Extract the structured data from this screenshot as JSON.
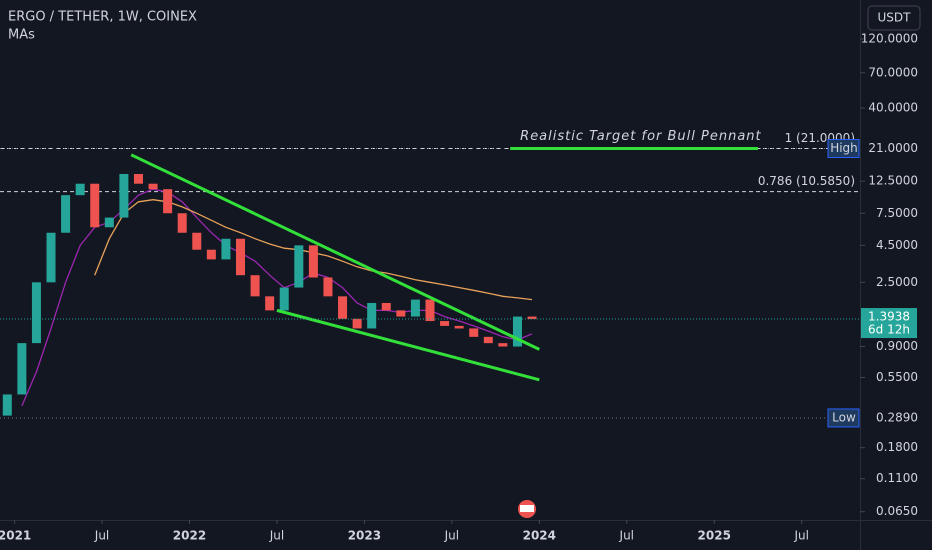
{
  "chart_data": {
    "type": "candlestick",
    "title": "ERGO / TETHER, 1W, COINEX",
    "subtitle": "MAs",
    "currency": "USDT",
    "log_scale": true,
    "grid": false,
    "up_color": "#26a69a",
    "down_color": "#ef5350",
    "x": [
      "2020-12",
      "2021-01",
      "2021-02",
      "2021-03",
      "2021-04",
      "2021-05",
      "2021-06",
      "2021-07",
      "2021-08",
      "2021-09",
      "2021-10",
      "2021-11",
      "2021-12",
      "2022-01",
      "2022-02",
      "2022-03",
      "2022-04",
      "2022-05",
      "2022-06",
      "2022-07",
      "2022-08",
      "2022-09",
      "2022-10",
      "2022-11",
      "2022-12",
      "2023-01",
      "2023-02",
      "2023-03",
      "2023-04",
      "2023-05",
      "2023-06",
      "2023-07",
      "2023-08",
      "2023-09",
      "2023-10",
      "2023-11",
      "2023-12"
    ],
    "open": [
      0.3,
      0.42,
      0.95,
      2.5,
      5.5,
      10,
      12,
      6,
      7,
      14,
      12,
      11,
      7.5,
      5.5,
      4.2,
      3.6,
      5,
      2.8,
      2,
      1.6,
      2.3,
      4.5,
      2.7,
      2,
      1.4,
      1.2,
      1.8,
      1.6,
      1.45,
      1.9,
      1.35,
      1.25,
      1.2,
      1.05,
      0.95,
      0.9,
      1.45
    ],
    "high": {
      "label": "High",
      "value": 21,
      "value_label": "21.0000"
    },
    "low": {
      "label": "Low",
      "value": 0.289,
      "value_label": "0.2890"
    },
    "close": [
      0.42,
      0.95,
      2.5,
      5.5,
      10,
      12,
      6,
      7,
      14,
      12,
      11,
      7.5,
      5.5,
      4.2,
      3.6,
      5,
      2.8,
      2,
      1.6,
      2.3,
      4.5,
      2.7,
      2,
      1.4,
      1.2,
      1.8,
      1.6,
      1.45,
      1.9,
      1.35,
      1.25,
      1.2,
      1.05,
      0.95,
      0.9,
      1.45,
      1.3938
    ],
    "series": [
      {
        "color": "#9c27b0",
        "values": [
          null,
          0.35,
          0.6,
          1.2,
          2.5,
          4.5,
          6,
          6.5,
          8,
          10,
          11,
          10.5,
          9,
          7,
          5.5,
          4.5,
          4,
          3.5,
          2.8,
          2.3,
          2.5,
          2.9,
          2.7,
          2.3,
          1.8,
          1.6,
          1.6,
          1.55,
          1.6,
          1.6,
          1.45,
          1.35,
          1.25,
          1.15,
          1.05,
          1.0,
          1.1
        ]
      },
      {
        "color": "#e8a25a",
        "values": [
          null,
          null,
          null,
          null,
          null,
          null,
          2.8,
          5,
          7.5,
          9,
          9.3,
          9,
          8.3,
          7.5,
          6.7,
          6,
          5.5,
          5,
          4.6,
          4.3,
          4.2,
          4,
          3.8,
          3.5,
          3.2,
          3.0,
          2.9,
          2.75,
          2.6,
          2.5,
          2.4,
          2.3,
          2.2,
          2.1,
          2.0,
          1.95,
          1.9
        ]
      }
    ],
    "xlim": [
      "2020-12",
      "2025-11"
    ],
    "xticks": [
      {
        "value": "2021-01",
        "label": "2021"
      },
      {
        "value": "2021-07",
        "label": "Jul"
      },
      {
        "value": "2022-01",
        "label": "2022"
      },
      {
        "value": "2022-07",
        "label": "Jul"
      },
      {
        "value": "2023-01",
        "label": "2023"
      },
      {
        "value": "2023-07",
        "label": "Jul"
      },
      {
        "value": "2024-01",
        "label": "2024"
      },
      {
        "value": "2024-07",
        "label": "Jul"
      },
      {
        "value": "2025-01",
        "label": "2025"
      },
      {
        "value": "2025-07",
        "label": "Jul"
      }
    ],
    "ylim": [
      0.057,
      223
    ],
    "yticks": [
      {
        "value": 120,
        "label": "120.0000"
      },
      {
        "value": 70,
        "label": "70.0000"
      },
      {
        "value": 40,
        "label": "40.0000"
      },
      {
        "value": 12.5,
        "label": "12.5000"
      },
      {
        "value": 7.5,
        "label": "7.5000"
      },
      {
        "value": 4.5,
        "label": "4.5000"
      },
      {
        "value": 2.5,
        "label": "2.5000"
      },
      {
        "value": 0.9,
        "label": "0.9000"
      },
      {
        "value": 0.55,
        "label": "0.5500"
      },
      {
        "value": 0.18,
        "label": "0.1800"
      },
      {
        "value": 0.11,
        "label": "0.1100"
      },
      {
        "value": 0.065,
        "label": "0.0650"
      }
    ],
    "fib": [
      {
        "label": "1 (21.0000)",
        "value": 21
      },
      {
        "label": "0.786 (10.5850)",
        "value": 10.585
      }
    ],
    "current": {
      "value": 1.3938,
      "value_label": "1.3938",
      "countdown": "6d 12h"
    },
    "trendlines": [
      {
        "color": "#33e03a",
        "points": [
          [
            "2021-09",
            19
          ],
          [
            "2024-01",
            0.86
          ]
        ]
      },
      {
        "color": "#33e03a",
        "points": [
          [
            "2022-07",
            1.6
          ],
          [
            "2024-01",
            0.53
          ]
        ]
      }
    ],
    "target": {
      "text": "Realistic Target for Bull Pennant",
      "color": "#33e03a",
      "points": [
        [
          "2023-11",
          21
        ],
        [
          "2025-04",
          21
        ]
      ]
    }
  }
}
